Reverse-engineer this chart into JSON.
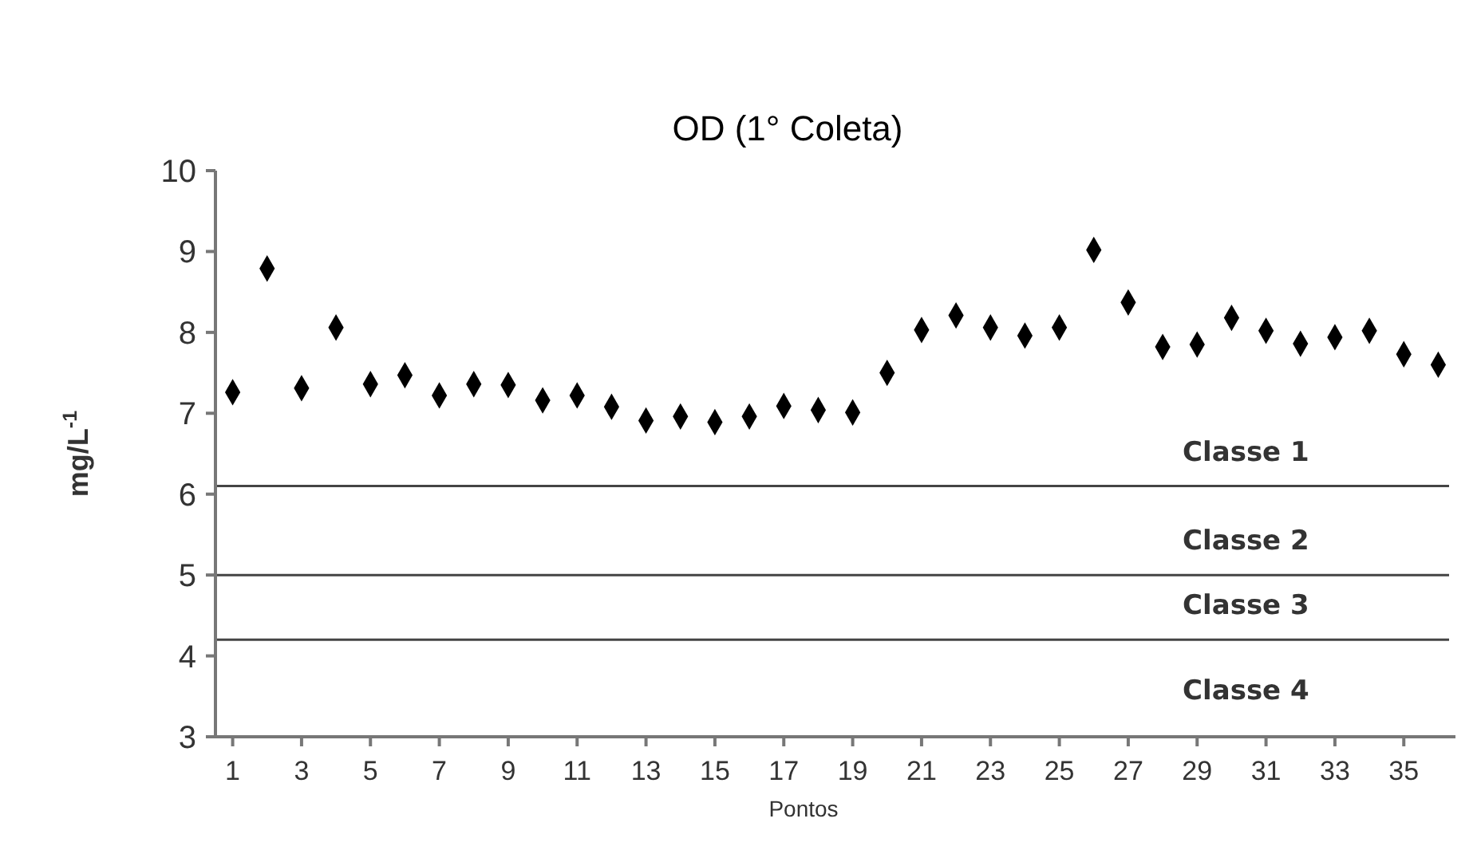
{
  "chart_data": {
    "type": "scatter",
    "title": "OD (1° Coleta)",
    "xlabel": "Pontos",
    "ylabel": "mg/L$^{-1}$",
    "x": [
      1,
      2,
      3,
      4,
      5,
      6,
      7,
      8,
      9,
      10,
      11,
      12,
      13,
      14,
      15,
      16,
      17,
      18,
      19,
      20,
      21,
      22,
      23,
      24,
      25,
      26,
      27,
      28,
      29,
      30,
      31,
      32,
      33,
      34,
      35,
      36
    ],
    "series": [
      {
        "color": "#000000",
        "values": [
          7.26,
          8.79,
          7.31,
          8.06,
          7.36,
          7.47,
          7.22,
          7.36,
          7.35,
          7.16,
          7.22,
          7.08,
          6.91,
          6.96,
          6.89,
          6.96,
          7.09,
          7.04,
          7.01,
          7.5,
          8.03,
          8.21,
          8.06,
          7.96,
          8.06,
          9.02,
          8.37,
          7.82,
          7.85,
          8.18,
          8.02,
          7.86,
          7.94,
          8.02,
          7.73,
          7.6
        ]
      }
    ],
    "xlim": [
      0.5,
      36.5
    ],
    "xticks": [
      1,
      3,
      5,
      7,
      9,
      11,
      13,
      15,
      17,
      19,
      21,
      23,
      25,
      27,
      29,
      31,
      33,
      35
    ],
    "ylim": [
      3,
      10
    ],
    "yticks": [
      3,
      4,
      5,
      6,
      7,
      8,
      9,
      10
    ],
    "ref_lines": [
      {
        "axis": "y",
        "value": 6.1,
        "label": "Classe 1",
        "color": "#444444"
      },
      {
        "axis": "y",
        "value": 5,
        "label": "Classe 2",
        "color": "#444444"
      },
      {
        "axis": "y",
        "value": 4.2,
        "label": "Classe 3",
        "color": "#444444"
      }
    ],
    "annotations": [
      "Classe 4"
    ],
    "marker": "diamond",
    "grid": false
  }
}
